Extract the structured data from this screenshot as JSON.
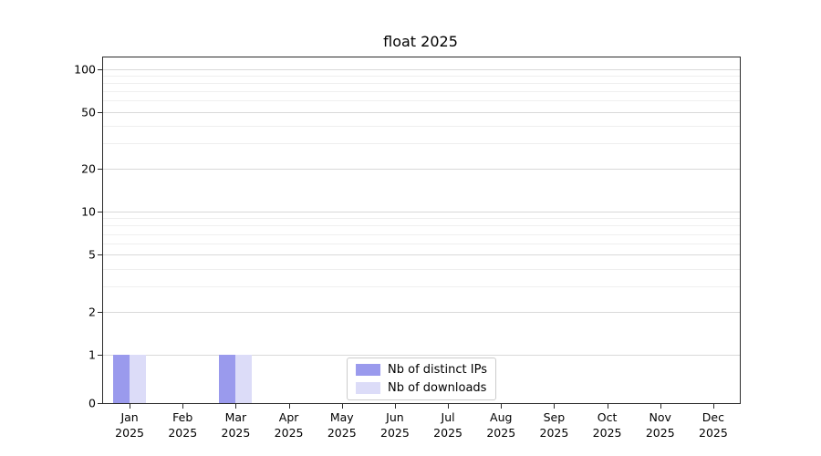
{
  "title": "float 2025",
  "chart_data": {
    "type": "bar",
    "title": "float 2025",
    "yscale": "symlog",
    "ylim": [
      0,
      100
    ],
    "grid": true,
    "legend_position": "lower center",
    "yticks": [
      0,
      1,
      2,
      5,
      10,
      20,
      50,
      100
    ],
    "categories": [
      {
        "month": "Jan",
        "year": "2025"
      },
      {
        "month": "Feb",
        "year": "2025"
      },
      {
        "month": "Mar",
        "year": "2025"
      },
      {
        "month": "Apr",
        "year": "2025"
      },
      {
        "month": "May",
        "year": "2025"
      },
      {
        "month": "Jun",
        "year": "2025"
      },
      {
        "month": "Jul",
        "year": "2025"
      },
      {
        "month": "Aug",
        "year": "2025"
      },
      {
        "month": "Sep",
        "year": "2025"
      },
      {
        "month": "Oct",
        "year": "2025"
      },
      {
        "month": "Nov",
        "year": "2025"
      },
      {
        "month": "Dec",
        "year": "2025"
      }
    ],
    "series": [
      {
        "name": "Nb of distinct IPs",
        "color": "#9a9aed",
        "values": [
          1,
          0,
          1,
          0,
          0,
          0,
          0,
          0,
          0,
          0,
          0,
          0
        ]
      },
      {
        "name": "Nb of downloads",
        "color": "#dcdcf8",
        "values": [
          1,
          0,
          1,
          0,
          0,
          0,
          0,
          0,
          0,
          0,
          0,
          0
        ]
      }
    ]
  }
}
